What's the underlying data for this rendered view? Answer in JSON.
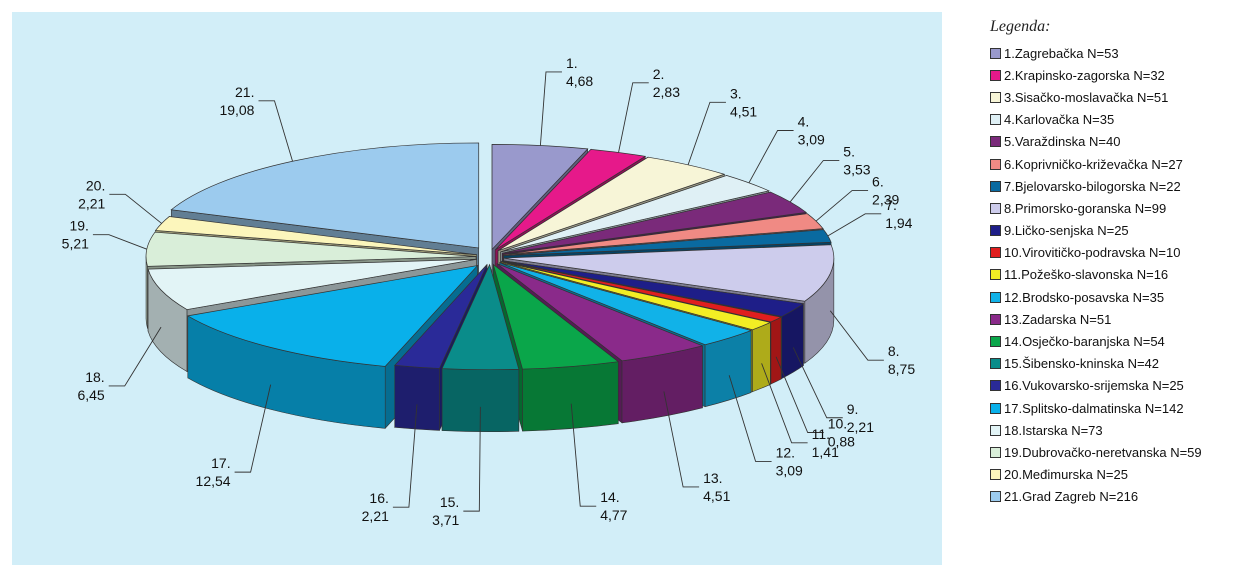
{
  "legend": {
    "title": "Legenda:"
  },
  "chart_data": {
    "type": "pie",
    "style": "exploded 3d pie, labels with leader lines",
    "legend_position": "right",
    "background": "#d2eef8",
    "slices": [
      {
        "id": "1.",
        "value": 4.68,
        "label_value": "4,68",
        "legend": "1.Zagrebačka N=53",
        "color": "#9999cc"
      },
      {
        "id": "2.",
        "value": 2.83,
        "label_value": "2,83",
        "legend": "2.Krapinsko-zagorska N=32",
        "color": "#e6198a"
      },
      {
        "id": "3.",
        "value": 4.51,
        "label_value": "4,51",
        "legend": "3.Sisačko-moslavačka N=51",
        "color": "#f7f5d7"
      },
      {
        "id": "4.",
        "value": 3.09,
        "label_value": "3,09",
        "legend": "4.Karlovačka N=35",
        "color": "#dff0f5"
      },
      {
        "id": "5.",
        "value": 3.53,
        "label_value": "3,53",
        "legend": "5.Varaždinska N=40",
        "color": "#7a2a7a"
      },
      {
        "id": "6.",
        "value": 2.39,
        "label_value": "2,39",
        "legend": "6.Koprivničko-križevačka N=27",
        "color": "#f08a84"
      },
      {
        "id": "7.",
        "value": 1.94,
        "label_value": "1,94",
        "legend": "7.Bjelovarsko-bilogorska N=22",
        "color": "#0a6aa0"
      },
      {
        "id": "8.",
        "value": 8.75,
        "label_value": "8,75",
        "legend": "8.Primorsko-goranska N=99",
        "color": "#cdccec"
      },
      {
        "id": "9.",
        "value": 2.21,
        "label_value": "2,21",
        "legend": "9.Ličko-senjska N=25",
        "color": "#1e1e88"
      },
      {
        "id": "10.",
        "value": 0.88,
        "label_value": "0,88",
        "legend": "10.Virovitičko-podravska N=10",
        "color": "#e01e1e"
      },
      {
        "id": "11.",
        "value": 1.41,
        "label_value": "1,41",
        "legend": "11.Požeško-slavonska N=16",
        "color": "#f2ee24"
      },
      {
        "id": "12.",
        "value": 3.09,
        "label_value": "3,09",
        "legend": "12.Brodsko-posavska N=35",
        "color": "#11b2e8"
      },
      {
        "id": "13.",
        "value": 4.51,
        "label_value": "4,51",
        "legend": "13.Zadarska N=51",
        "color": "#8a2a8a"
      },
      {
        "id": "14.",
        "value": 4.77,
        "label_value": "4,77",
        "legend": "14.Osječko-baranjska N=54",
        "color": "#0aa64a"
      },
      {
        "id": "15.",
        "value": 3.71,
        "label_value": "3,71",
        "legend": "15.Šibensko-kninska N=42",
        "color": "#0a8c8a"
      },
      {
        "id": "16.",
        "value": 2.21,
        "label_value": "2,21",
        "legend": "16.Vukovarsko-srijemska N=25",
        "color": "#2a2a98"
      },
      {
        "id": "17.",
        "value": 12.54,
        "label_value": "12,54",
        "legend": "17.Splitsko-dalmatinska N=142",
        "color": "#09b0ea"
      },
      {
        "id": "18.",
        "value": 6.45,
        "label_value": "6,45",
        "legend": "18.Istarska N=73",
        "color": "#e2f4f6"
      },
      {
        "id": "19.",
        "value": 5.21,
        "label_value": "5,21",
        "legend": "19.Dubrovačko-neretvanska N=59",
        "color": "#d9eed9"
      },
      {
        "id": "20.",
        "value": 2.21,
        "label_value": "2,21",
        "legend": "20.Međimurska N=25",
        "color": "#fcf6bc"
      },
      {
        "id": "21.",
        "value": 19.08,
        "label_value": "19,08",
        "legend": "21.Grad Zagreb N=216",
        "color": "#9ccbee"
      }
    ]
  }
}
